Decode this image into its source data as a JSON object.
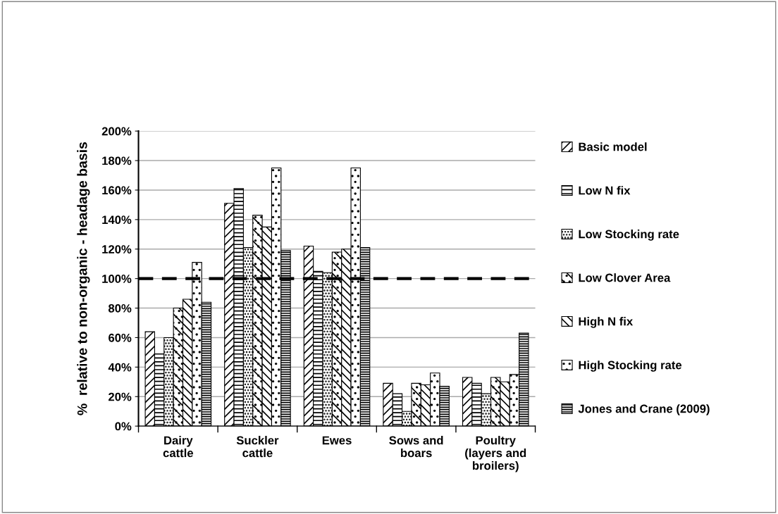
{
  "chart_data": {
    "type": "bar",
    "ylabel": "%  relative to non-organic - headage basis",
    "categories": [
      "Dairy\ncattle",
      "Suckler\ncattle",
      "Ewes",
      "Sows and\nboars",
      "Poultry\n(layers and\nbroilers)"
    ],
    "series": [
      {
        "name": "Basic model",
        "color": "#000000",
        "values": [
          64,
          151,
          122,
          29,
          33
        ]
      },
      {
        "name": "Low N fix",
        "color": "#000000",
        "values": [
          49,
          161,
          105,
          22,
          29
        ]
      },
      {
        "name": "Low Stocking rate",
        "color": "#000000",
        "values": [
          60,
          121,
          104,
          10,
          22
        ]
      },
      {
        "name": "Low Clover Area",
        "color": "#000000",
        "values": [
          80,
          143,
          118,
          29,
          33
        ]
      },
      {
        "name": "High N fix",
        "color": "#000000",
        "values": [
          86,
          135,
          120,
          28,
          30
        ]
      },
      {
        "name": "High Stocking rate",
        "color": "#000000",
        "values": [
          111,
          175,
          175,
          36,
          35
        ]
      },
      {
        "name": "Jones and Crane (2009)",
        "color": "#000000",
        "values": [
          84,
          119,
          121,
          27,
          63
        ]
      }
    ],
    "ylim": [
      0,
      200
    ],
    "yticks": [
      {
        "value": 0,
        "label": "0%"
      },
      {
        "value": 20,
        "label": "20%"
      },
      {
        "value": 40,
        "label": "40%"
      },
      {
        "value": 60,
        "label": "60%"
      },
      {
        "value": 80,
        "label": "80%"
      },
      {
        "value": 100,
        "label": "100%"
      },
      {
        "value": 120,
        "label": "120%"
      },
      {
        "value": 140,
        "label": "140%"
      },
      {
        "value": 160,
        "label": "160%"
      },
      {
        "value": 180,
        "label": "180%"
      },
      {
        "value": 200,
        "label": "200%"
      }
    ],
    "grid": "y",
    "legend": "right",
    "ref_lines": [
      {
        "axis": "y",
        "value": 100,
        "color": "#000000",
        "line_style": "dashed"
      }
    ]
  }
}
